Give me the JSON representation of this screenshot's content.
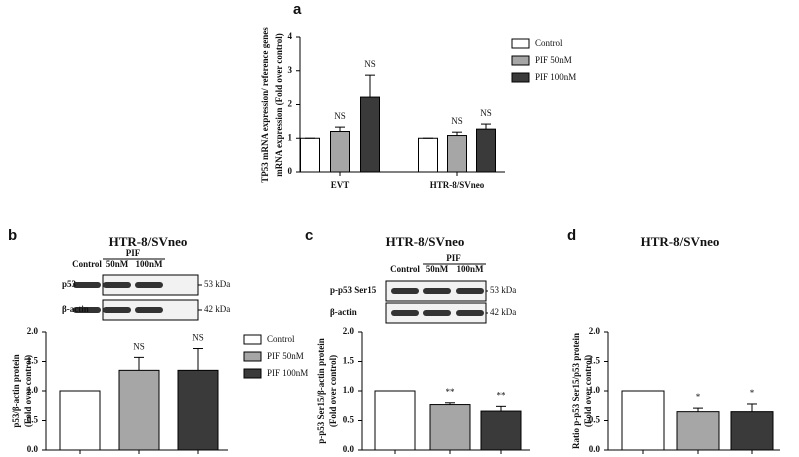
{
  "chart_data": [
    {
      "panel": "a",
      "type": "bar",
      "ylabel": [
        "TP53 mRNA expression/ reference genes",
        "mRNA expression (Fold over control)"
      ],
      "categories": [
        "EVT",
        "HTR-8/SVneo"
      ],
      "series": [
        {
          "name": "Control",
          "color": "#ffffff",
          "values": [
            1,
            1
          ],
          "errors": [
            0,
            0
          ]
        },
        {
          "name": "PIF 50nM",
          "color": "#a6a6a6",
          "values": [
            1.2,
            1.08
          ],
          "errors": [
            0.13,
            0.1
          ]
        },
        {
          "name": "PIF 100nM",
          "color": "#3a3a3a",
          "values": [
            2.22,
            1.27
          ],
          "errors": [
            0.65,
            0.15
          ]
        }
      ],
      "annotations": [
        {
          "text": "NS",
          "series": 1,
          "category": 0
        },
        {
          "text": "NS",
          "series": 2,
          "category": 0
        },
        {
          "text": "NS",
          "series": 1,
          "category": 1
        },
        {
          "text": "NS",
          "series": 2,
          "category": 1
        }
      ],
      "ylim": [
        0,
        4
      ],
      "yticks": [
        0,
        1,
        2,
        3,
        4
      ],
      "legend": "right"
    },
    {
      "panel": "b",
      "type": "bar",
      "title": "HTR-8/SVneo",
      "blot": {
        "group": "PIF",
        "lanes": [
          "Control",
          "50nM",
          "100nM"
        ],
        "rows": [
          {
            "label": "p53",
            "kda": "53 kDa"
          },
          {
            "label": "β-actin",
            "kda": "42 kDa"
          }
        ]
      },
      "ylabel": [
        "p53/β-actin protein",
        "(Fold over control)"
      ],
      "categories": [
        null,
        null,
        null
      ],
      "values": [
        1,
        1.35,
        1.35
      ],
      "errors": [
        0,
        0.22,
        0.37
      ],
      "colors": [
        "#ffffff",
        "#a6a6a6",
        "#3a3a3a"
      ],
      "legend_names": [
        "Control",
        "PIF 50nM",
        "PIF 100nM"
      ],
      "annotations": [
        {
          "text": "NS",
          "bar": 1
        },
        {
          "text": "NS",
          "bar": 2
        }
      ],
      "ylim": [
        0,
        2
      ],
      "yticks": [
        {
          "value": 0,
          "label": "0.0"
        },
        {
          "value": 0.5,
          "label": "0.5"
        },
        {
          "value": 1,
          "label": "1.0"
        },
        {
          "value": 1.5,
          "label": "1.5"
        },
        {
          "value": 2,
          "label": "2.0"
        }
      ]
    },
    {
      "panel": "c",
      "type": "bar",
      "title": "HTR-8/SVneo",
      "blot": {
        "group": "PIF",
        "lanes": [
          "Control",
          "50nM",
          "100nM"
        ],
        "rows": [
          {
            "label": "p-p53 Ser15",
            "kda": "53 kDa"
          },
          {
            "label": "β-actin",
            "kda": "42 kDa"
          }
        ]
      },
      "ylabel": [
        "p-p53 Ser15/β-actin protein",
        "(Fold over control)"
      ],
      "categories": [
        null,
        null,
        null
      ],
      "values": [
        1,
        0.77,
        0.66
      ],
      "errors": [
        0,
        0.03,
        0.08
      ],
      "colors": [
        "#ffffff",
        "#a6a6a6",
        "#3a3a3a"
      ],
      "annotations": [
        {
          "text": "**",
          "bar": 1
        },
        {
          "text": "**",
          "bar": 2
        }
      ],
      "ylim": [
        0,
        2
      ],
      "yticks": [
        {
          "value": 0,
          "label": "0.0"
        },
        {
          "value": 0.5,
          "label": "0.5"
        },
        {
          "value": 1,
          "label": "1.0"
        },
        {
          "value": 1.5,
          "label": "1.5"
        },
        {
          "value": 2,
          "label": "2.0"
        }
      ]
    },
    {
      "panel": "d",
      "type": "bar",
      "title": "HTR-8/SVneo",
      "ylabel": [
        "Ratio p-p53 Ser15/p53 protein",
        "(Fold over control)"
      ],
      "categories": [
        null,
        null,
        null
      ],
      "values": [
        1,
        0.65,
        0.65
      ],
      "errors": [
        0,
        0.06,
        0.13
      ],
      "colors": [
        "#ffffff",
        "#a6a6a6",
        "#3a3a3a"
      ],
      "annotations": [
        {
          "text": "*",
          "bar": 1
        },
        {
          "text": "*",
          "bar": 2
        }
      ],
      "ylim": [
        0,
        2
      ],
      "yticks": [
        {
          "value": 0,
          "label": "0.0"
        },
        {
          "value": 0.5,
          "label": "0.5"
        },
        {
          "value": 1,
          "label": "1.0"
        },
        {
          "value": 1.5,
          "label": "1.5"
        },
        {
          "value": 2,
          "label": "2.0"
        }
      ]
    }
  ]
}
